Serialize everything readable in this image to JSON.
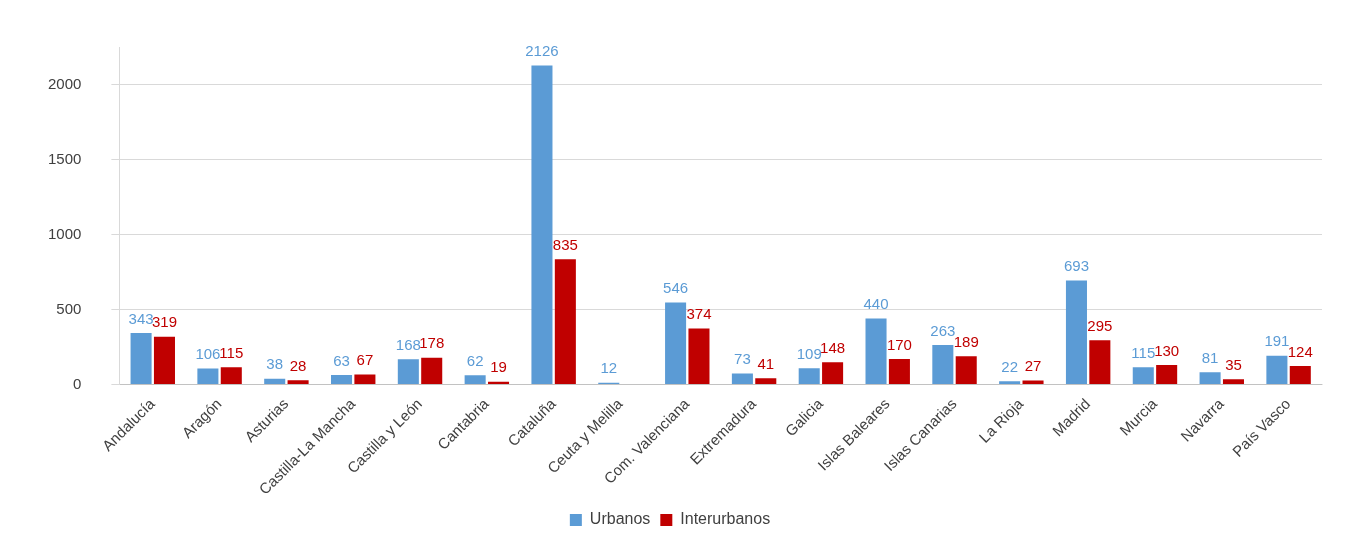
{
  "chart_data": {
    "type": "bar",
    "categories": [
      "Andalucía",
      "Aragón",
      "Asturias",
      "Castilla-La Mancha",
      "Castilla y León",
      "Cantabria",
      "Cataluña",
      "Ceuta y Melilla",
      "Com. Valenciana",
      "Extremadura",
      "Galicia",
      "Islas Baleares",
      "Islas Canarias",
      "La Rioja",
      "Madrid",
      "Murcia",
      "Navarra",
      "País Vasco"
    ],
    "series": [
      {
        "name": "Urbanos",
        "color": "#5b9bd5",
        "values": [
          343,
          106,
          38,
          63,
          168,
          62,
          2126,
          12,
          546,
          73,
          109,
          440,
          263,
          22,
          693,
          115,
          81,
          191
        ]
      },
      {
        "name": "Interurbanos",
        "color": "#c00000",
        "values": [
          319,
          115,
          28,
          67,
          178,
          19,
          835,
          null,
          374,
          41,
          148,
          170,
          189,
          27,
          295,
          130,
          35,
          124
        ]
      }
    ],
    "ylim": [
      0,
      2250
    ],
    "yticks": [
      0,
      500,
      1000,
      1500,
      2000
    ],
    "grid": "y",
    "legend": "bottom",
    "data_labels": true
  }
}
